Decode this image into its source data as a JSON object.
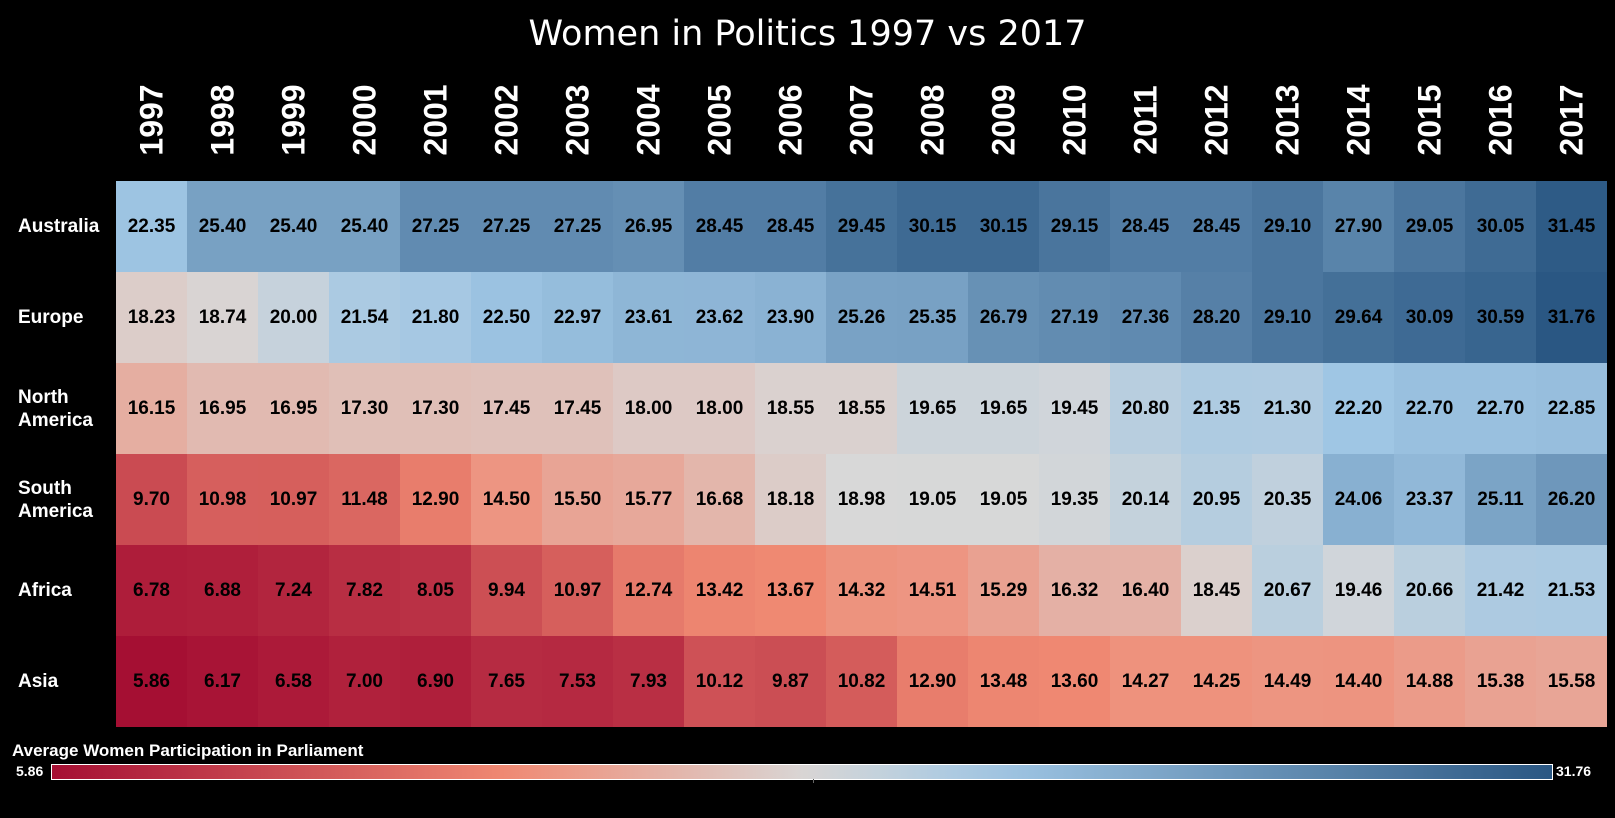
{
  "chart_data": {
    "type": "heatmap",
    "title": "Women in Politics 1997 vs 2017",
    "columns": [
      "1997",
      "1998",
      "1999",
      "2000",
      "2001",
      "2002",
      "2003",
      "2004",
      "2005",
      "2006",
      "2007",
      "2008",
      "2009",
      "2010",
      "2011",
      "2012",
      "2013",
      "2014",
      "2015",
      "2016",
      "2017"
    ],
    "rows": [
      {
        "label": "Australia",
        "values": [
          22.35,
          25.4,
          25.4,
          25.4,
          27.25,
          27.25,
          27.25,
          26.95,
          28.45,
          28.45,
          29.45,
          30.15,
          30.15,
          29.15,
          28.45,
          28.45,
          29.1,
          27.9,
          29.05,
          30.05,
          31.45
        ]
      },
      {
        "label": "Europe",
        "values": [
          18.23,
          18.74,
          20.0,
          21.54,
          21.8,
          22.5,
          22.97,
          23.61,
          23.62,
          23.9,
          25.26,
          25.35,
          26.79,
          27.19,
          27.36,
          28.2,
          29.1,
          29.64,
          30.09,
          30.59,
          31.76
        ]
      },
      {
        "label": "North America",
        "values": [
          16.15,
          16.95,
          16.95,
          17.3,
          17.3,
          17.45,
          17.45,
          18.0,
          18.0,
          18.55,
          18.55,
          19.65,
          19.65,
          19.45,
          20.8,
          21.35,
          21.3,
          22.2,
          22.7,
          22.7,
          22.85
        ]
      },
      {
        "label": "South America",
        "values": [
          9.7,
          10.98,
          10.97,
          11.48,
          12.9,
          14.5,
          15.5,
          15.77,
          16.68,
          18.18,
          18.98,
          19.05,
          19.05,
          19.35,
          20.14,
          20.95,
          20.35,
          24.06,
          23.37,
          25.11,
          26.2
        ]
      },
      {
        "label": "Africa",
        "values": [
          6.78,
          6.88,
          7.24,
          7.82,
          8.05,
          9.94,
          10.97,
          12.74,
          13.42,
          13.67,
          14.32,
          14.51,
          15.29,
          16.32,
          16.4,
          18.45,
          20.67,
          19.46,
          20.66,
          21.42,
          21.53
        ]
      },
      {
        "label": "Asia",
        "values": [
          5.86,
          6.17,
          6.58,
          7.0,
          6.9,
          7.65,
          7.53,
          7.93,
          10.12,
          9.87,
          10.82,
          12.9,
          13.48,
          13.6,
          14.27,
          14.25,
          14.49,
          14.4,
          14.88,
          15.38,
          15.58
        ]
      }
    ],
    "legend": {
      "title": "Average Women Participation in Parliament",
      "min_label": "5.86",
      "max_label": "31.76",
      "min": 5.86,
      "max": 31.76,
      "center": 19.0,
      "placement": "bottom"
    },
    "colors": {
      "low": "#a50f33",
      "mid_low": "#f08a73",
      "center": "#d8d8d8",
      "mid_high": "#9fc6e4",
      "high": "#2a5783",
      "background": "#000000"
    }
  }
}
